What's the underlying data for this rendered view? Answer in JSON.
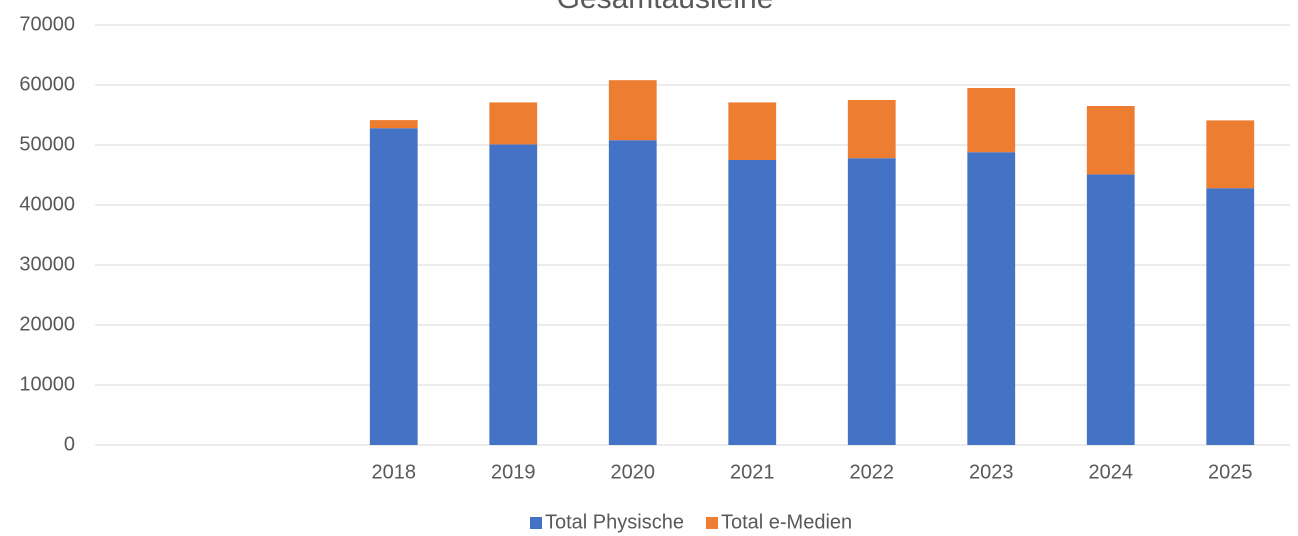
{
  "chart_data": {
    "type": "stacked_bar",
    "title": "Gesamtausleihe",
    "categories": [
      null,
      null,
      "2018",
      "2019",
      "2020",
      "2021",
      "2022",
      "2023",
      "2024",
      "2025"
    ],
    "series": [
      {
        "name": "Total Physische",
        "color": "#4472c4",
        "values": [
          null,
          null,
          52800,
          50100,
          50800,
          47500,
          47800,
          48800,
          45100,
          42800
        ]
      },
      {
        "name": "Total e-Medien",
        "color": "#ed7d31",
        "values": [
          null,
          null,
          1350,
          7000,
          10000,
          9600,
          9700,
          10700,
          11400,
          11300
        ]
      }
    ],
    "ylim": [
      0,
      70000
    ],
    "yticks": [
      0,
      10000,
      20000,
      30000,
      40000,
      50000,
      60000,
      70000
    ],
    "grid": true,
    "legend": "bottom"
  }
}
